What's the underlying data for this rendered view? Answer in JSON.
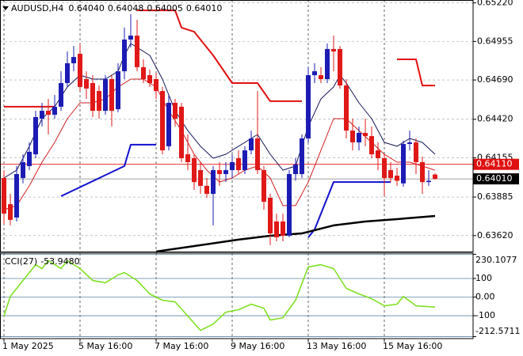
{
  "chart_data": [
    {
      "type": "candlestick",
      "title": "AUDUSD,H4",
      "title_values": [
        {
          "value": 0.6404,
          "label": "0.64040"
        },
        {
          "value": 0.64048,
          "label": "0.64048"
        },
        {
          "value": 0.64005,
          "label": "0.64005"
        },
        {
          "value": 0.6401,
          "label": "0.64010"
        }
      ],
      "open": [
        0.64016,
        0.63836,
        0.63744,
        0.64016,
        0.64098,
        0.64179,
        0.64424,
        0.64478,
        0.64451,
        0.64506,
        0.64669,
        0.64805,
        0.6487,
        0.64696,
        0.64669,
        0.64614,
        0.64478,
        0.64696,
        0.64489,
        0.6475,
        0.64968,
        0.64995,
        0.64778,
        0.64723,
        0.64696,
        0.64614,
        0.64234,
        0.64533,
        0.64506,
        0.64179,
        0.64152,
        0.6407,
        0.63962,
        0.63907,
        0.6407,
        0.64043,
        0.6407,
        0.64152,
        0.6407,
        0.64206,
        0.64288,
        0.6407,
        0.6388,
        0.63717,
        0.63717,
        0.63619,
        0.64043,
        0.64043,
        0.64288,
        0.64723,
        0.64723,
        0.64696,
        0.64903,
        0.64903,
        0.64652,
        0.64342,
        0.64261,
        0.64326,
        0.64304,
        0.64206,
        0.64152,
        0.6407,
        0.64032,
        0.63979,
        0.6425,
        0.64261,
        0.64125,
        0.63988,
        0.6404
      ],
      "high": [
        0.6407,
        0.63907,
        0.64098,
        0.64179,
        0.64261,
        0.64478,
        0.64533,
        0.6456,
        0.64587,
        0.6475,
        0.64886,
        0.64924,
        0.64941,
        0.6475,
        0.64723,
        0.64652,
        0.64723,
        0.64723,
        0.64805,
        0.6505,
        0.65142,
        0.65104,
        0.64832,
        0.64761,
        0.6474,
        0.64642,
        0.64587,
        0.6456,
        0.64533,
        0.64315,
        0.64179,
        0.64125,
        0.64016,
        0.64098,
        0.64125,
        0.64125,
        0.64179,
        0.64206,
        0.64234,
        0.64342,
        0.64614,
        0.64098,
        0.63907,
        0.63771,
        0.63771,
        0.6407,
        0.64152,
        0.64315,
        0.64778,
        0.64805,
        0.64778,
        0.64941,
        0.64995,
        0.64924,
        0.64696,
        0.64424,
        0.6437,
        0.64424,
        0.6437,
        0.64261,
        0.64179,
        0.64125,
        0.64087,
        0.64272,
        0.64342,
        0.64288,
        0.64163,
        0.6407,
        0.64048
      ],
      "low": [
        0.637,
        0.6369,
        0.63717,
        0.63979,
        0.6407,
        0.64152,
        0.6437,
        0.64315,
        0.64424,
        0.64478,
        0.64642,
        0.6475,
        0.64614,
        0.6456,
        0.64435,
        0.64424,
        0.64451,
        0.6437,
        0.64468,
        0.64696,
        0.64914,
        0.6475,
        0.64669,
        0.64642,
        0.6456,
        0.64179,
        0.64206,
        0.6437,
        0.64125,
        0.6407,
        0.63934,
        0.63907,
        0.6388,
        0.6369,
        0.63962,
        0.63988,
        0.64016,
        0.64043,
        0.64043,
        0.64179,
        0.64043,
        0.63798,
        0.63554,
        0.63581,
        0.63581,
        0.63608,
        0.63997,
        0.64016,
        0.64261,
        0.64669,
        0.64669,
        0.64669,
        0.6475,
        0.64631,
        0.64288,
        0.64206,
        0.64206,
        0.64234,
        0.64152,
        0.6407,
        0.63891,
        0.63988,
        0.63962,
        0.63956,
        0.64206,
        0.64043,
        0.63907,
        0.63962,
        0.64005
      ],
      "close": [
        0.63771,
        0.63728,
        0.64043,
        0.64125,
        0.64196,
        0.64435,
        0.64478,
        0.64451,
        0.64506,
        0.64669,
        0.64805,
        0.64848,
        0.64642,
        0.64631,
        0.64478,
        0.64478,
        0.64696,
        0.64478,
        0.6475,
        0.64968,
        0.64995,
        0.64778,
        0.64696,
        0.64669,
        0.64614,
        0.64206,
        0.64533,
        0.64424,
        0.64152,
        0.64125,
        0.63988,
        0.63962,
        0.63907,
        0.6407,
        0.64043,
        0.6407,
        0.64125,
        0.6407,
        0.64206,
        0.64288,
        0.6407,
        0.63853,
        0.63635,
        0.63608,
        0.63619,
        0.64043,
        0.64108,
        0.64288,
        0.64723,
        0.6475,
        0.64696,
        0.64903,
        0.64886,
        0.64652,
        0.64342,
        0.64261,
        0.64326,
        0.64304,
        0.64179,
        0.64152,
        0.64016,
        0.64016,
        0.63997,
        0.6425,
        0.64261,
        0.64125,
        0.63988,
        0.63997,
        0.6401
      ],
      "up_color": "#1c1cb4",
      "down_color": "#e01818",
      "series": [
        {
          "color": "#14145a",
          "width": 1,
          "x": [
            0,
            2,
            4,
            6,
            8,
            10,
            12,
            14,
            16,
            18,
            19,
            20,
            21,
            23,
            25,
            27,
            29,
            31,
            33,
            35,
            37,
            39,
            40,
            42,
            44,
            46,
            48,
            50,
            52,
            53,
            54,
            56,
            58,
            60,
            62,
            64,
            66,
            68
          ],
          "values": [
            0.64016,
            0.6407,
            0.64234,
            0.64424,
            0.64506,
            0.64642,
            0.64723,
            0.64696,
            0.64696,
            0.6475,
            0.64859,
            0.64941,
            0.64914,
            0.64859,
            0.64696,
            0.64478,
            0.64342,
            0.64234,
            0.64152,
            0.64179,
            0.64234,
            0.64288,
            0.64315,
            0.64179,
            0.6407,
            0.64098,
            0.6437,
            0.6456,
            0.64642,
            0.64723,
            0.64669,
            0.64533,
            0.64424,
            0.64261,
            0.64234,
            0.64288,
            0.64261,
            0.64179
          ]
        },
        {
          "color": "#d42020",
          "width": 1,
          "x": [
            0,
            2,
            4,
            6,
            8,
            10,
            12,
            14,
            16,
            18,
            20,
            22,
            24,
            26,
            28,
            30,
            32,
            34,
            36,
            38,
            40,
            42,
            44,
            46,
            48,
            50,
            52,
            54,
            56,
            58,
            60,
            62,
            64,
            66,
            68
          ],
          "values": [
            0.63798,
            0.63826,
            0.63962,
            0.64125,
            0.64261,
            0.64424,
            0.64533,
            0.64533,
            0.6456,
            0.64642,
            0.64696,
            0.64696,
            0.64642,
            0.64478,
            0.64342,
            0.64179,
            0.6407,
            0.63988,
            0.64016,
            0.6407,
            0.64098,
            0.64016,
            0.63826,
            0.63826,
            0.63988,
            0.64206,
            0.64424,
            0.64424,
            0.64342,
            0.64261,
            0.64179,
            0.64125,
            0.64125,
            0.64098,
            0.6407
          ]
        },
        {
          "color": "#e01010",
          "width": 2,
          "x": [
            0,
            8,
            null,
            21,
            27,
            28,
            30,
            33,
            36,
            40,
            42,
            47,
            null,
            62,
            65,
            66,
            68
          ],
          "values": [
            0.64506,
            0.64506,
            null,
            0.65169,
            0.65169,
            0.6505,
            0.65022,
            0.64859,
            0.64669,
            0.64669,
            0.64544,
            0.64544,
            null,
            0.64832,
            0.64832,
            0.64652,
            0.64652
          ]
        },
        {
          "color": "#1010d0",
          "width": 2,
          "x": [
            9,
            19,
            20,
            24,
            null,
            48,
            49,
            52,
            61
          ],
          "values": [
            0.63891,
            0.64098,
            0.64245,
            0.64245,
            null,
            0.63608,
            0.63662,
            0.63988,
            0.63988
          ]
        },
        {
          "color": "#000000",
          "width": 2.5,
          "x": [
            24,
            31,
            37,
            42,
            47,
            52,
            57,
            62,
            68
          ],
          "values": [
            0.6351,
            0.63554,
            0.63592,
            0.63619,
            0.63635,
            0.6369,
            0.63717,
            0.63733,
            0.63755
          ]
        }
      ],
      "levels": [
        {
          "value": 0.6411,
          "label": "0.64110",
          "color": "#e01010"
        },
        {
          "value": 0.6401,
          "label": "0.64010",
          "color": "#000000"
        }
      ],
      "ylim": [
        0.6351,
        0.6524
      ],
      "yticks": [
        {
          "value": 0.6522,
          "label": "0.65220"
        },
        0.64955,
        {
          "value": 0.6469,
          "label": "0.64690"
        },
        {
          "value": 0.6442,
          "label": "0.64420"
        },
        0.64155,
        0.63885,
        {
          "value": 0.6362,
          "label": "0.63620"
        }
      ],
      "xlim": [
        -0.625,
        74
      ],
      "xticks": [
        {
          "value": 0,
          "label": "1 May 2025"
        },
        {
          "value": 12,
          "label": "5 May 16:00"
        },
        {
          "value": 24,
          "label": "7 May 16:00"
        },
        {
          "value": 36,
          "label": "9 May 16:00"
        },
        {
          "value": 48,
          "label": "13 May 16:00"
        },
        {
          "value": 60,
          "label": "15 May 16:00"
        }
      ],
      "grid": true
    },
    {
      "type": "line",
      "title": "CCI(27)",
      "title_value": {
        "value": -53.948,
        "label": "-53.9480"
      },
      "series": [
        {
          "color": "#7fe022",
          "x": [
            0,
            1,
            3,
            5,
            6,
            7,
            9,
            10,
            12,
            14,
            16,
            18,
            19,
            21,
            23,
            25,
            27,
            29,
            31,
            33,
            35,
            37,
            39,
            41,
            42,
            44,
            46,
            48,
            50,
            52,
            54,
            56,
            58,
            60,
            62,
            63,
            65,
            68
          ],
          "values": [
            -102,
            4,
            89,
            174,
            153,
            196,
            153,
            196,
            153,
            89,
            77,
            119,
            132,
            89,
            17,
            -17,
            -26,
            -102,
            -179,
            -145,
            -81,
            -68,
            -38,
            -60,
            -123,
            -111,
            -17,
            162,
            174,
            153,
            47,
            17,
            -9,
            -47,
            -38,
            4,
            -47,
            -53.948
          ]
        }
      ],
      "ylim": [
        -223,
        236
      ],
      "yticks": [
        230.1077,
        100,
        {
          "value": 0,
          "label": "0.00"
        },
        -100,
        -212.5711
      ],
      "xlim": [
        -0.625,
        74
      ]
    }
  ]
}
